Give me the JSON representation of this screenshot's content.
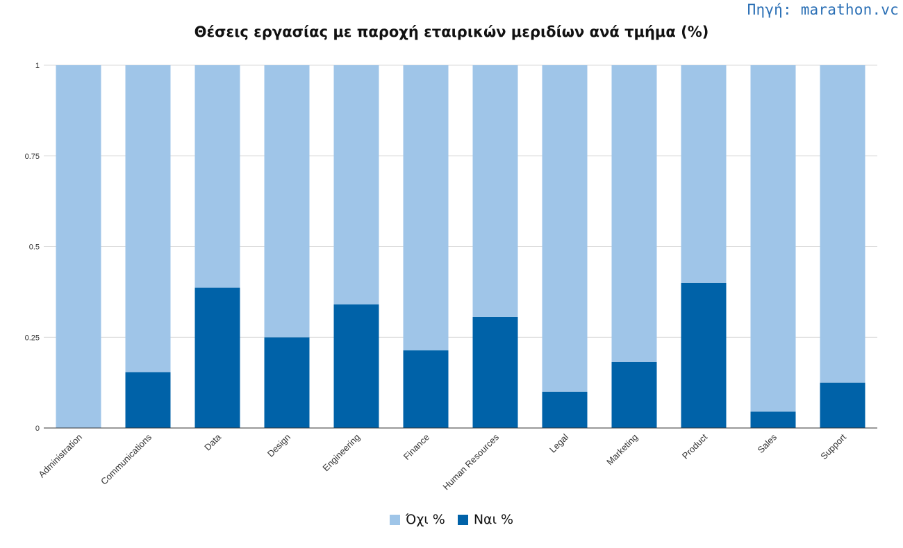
{
  "source_label": "Πηγή: marathon.vc",
  "colors": {
    "no": "#9fc5e8",
    "yes": "#0062a8",
    "grid": "#d9d9d9",
    "axis": "#333333"
  },
  "chart_data": {
    "type": "bar",
    "stacked": true,
    "title": "Θέσεις εργασίας με παροχή εταιρικών μεριδίων ανά τμήμα (%)",
    "xlabel": "",
    "ylabel": "",
    "ylim": [
      0,
      1
    ],
    "yticks": [
      "0",
      "0.25",
      "0.5",
      "0.75",
      "1"
    ],
    "grid": true,
    "legend_position": "bottom",
    "categories": [
      "Administration",
      "Communications",
      "Data",
      "Design",
      "Engineering",
      "Finance",
      "Human Resources",
      "Legal",
      "Marketing",
      "Product",
      "Sales",
      "Support"
    ],
    "series": [
      {
        "name": "Ναι %",
        "values": [
          0,
          0.154,
          0.387,
          0.25,
          0.341,
          0.214,
          0.306,
          0.1,
          0.182,
          0.4,
          0.045,
          0.125
        ]
      },
      {
        "name": "Όχι %",
        "values": [
          1,
          0.846,
          0.613,
          0.75,
          0.659,
          0.786,
          0.694,
          0.9,
          0.818,
          0.6,
          0.955,
          0.875
        ]
      }
    ]
  }
}
